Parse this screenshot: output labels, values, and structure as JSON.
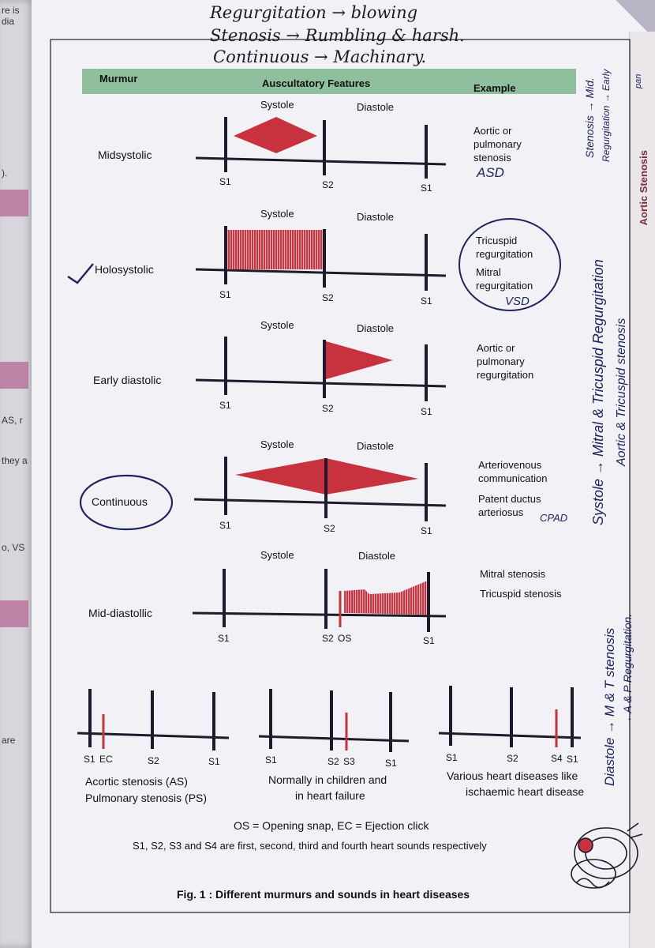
{
  "left_page": [
    "re is dia",
    ").",
    "AS, r",
    "they a",
    "o, VS",
    "are"
  ],
  "side_tab": "Aortic Stenosis",
  "handwritten_top": [
    "Regurgitation → blowing",
    "Stenosis → Rumbling & harsh.",
    "Continuous → Machinary."
  ],
  "handwritten_right": {
    "top": [
      "Stenosis → Mid.",
      "Regurgitation → Early"
    ],
    "top_suffix": "pan",
    "systole": [
      "Systole → Mitral & Tricuspid Regurgitation",
      "Aortic & Tricuspid stenosis"
    ],
    "diastole": [
      "Diastole → M & T stenosis",
      "→ A & P Regurgitation."
    ]
  },
  "header": {
    "col1": "Murmur",
    "col2": "Auscultatory Features",
    "col3": "Example"
  },
  "labels": {
    "systole": "Systole",
    "diastole": "Diastole"
  },
  "rows": [
    {
      "name": "Midsystolic",
      "examples": [
        "Aortic or",
        "pulmonary",
        "stenosis"
      ],
      "handwritten": [
        "ASD"
      ],
      "sounds": [
        "S1",
        "S2",
        "S1"
      ]
    },
    {
      "name": "Holosystolic",
      "examples": [
        "Tricuspid",
        "regurgitation",
        "Mitral",
        "regurgitation"
      ],
      "handwritten": [
        "VSD"
      ],
      "sounds": [
        "S1",
        "S2",
        "S1"
      ]
    },
    {
      "name": "Early diastolic",
      "examples": [
        "Aortic or",
        "pulmonary",
        "regurgitation"
      ],
      "sounds": [
        "S1",
        "S2",
        "S1"
      ]
    },
    {
      "name": "Continuous",
      "examples": [
        "Arteriovenous",
        "communication",
        "Patent ductus",
        "arteriosus"
      ],
      "handwritten": [
        "CPAD"
      ],
      "sounds": [
        "S1",
        "S2",
        "S1"
      ]
    },
    {
      "name": "Mid-diastollic",
      "examples": [
        "Mitral stenosis",
        "Tricuspid stenosis"
      ],
      "sounds": [
        "S1",
        "S2",
        "OS",
        "S1"
      ]
    }
  ],
  "bottom": [
    {
      "sounds": [
        "S1",
        "EC",
        "S2",
        "S1"
      ],
      "caption": [
        "Acortic stenosis (AS)",
        "Pulmonary stenosis (PS)"
      ]
    },
    {
      "sounds": [
        "S1",
        "S2",
        "S3",
        "S1"
      ],
      "caption": [
        "Normally in children and",
        "in heart failure"
      ]
    },
    {
      "sounds": [
        "S1",
        "S2",
        "S4",
        "S1"
      ],
      "caption": [
        "Various heart diseases like",
        "ischaemic heart disease"
      ]
    }
  ],
  "legend_line1": "OS = Opening snap,  EC = Ejection click",
  "legend_line2": "S1, S2, S3 and S4 are first, second, third and fourth heart sounds respectively",
  "figure_caption": "Fig. 1 : Different murmurs and sounds in heart diseases",
  "colors": {
    "header": "#8fbf9c",
    "murmur": "#c8323f",
    "ink": "#1c1c2c",
    "pen": "#1d2460"
  }
}
